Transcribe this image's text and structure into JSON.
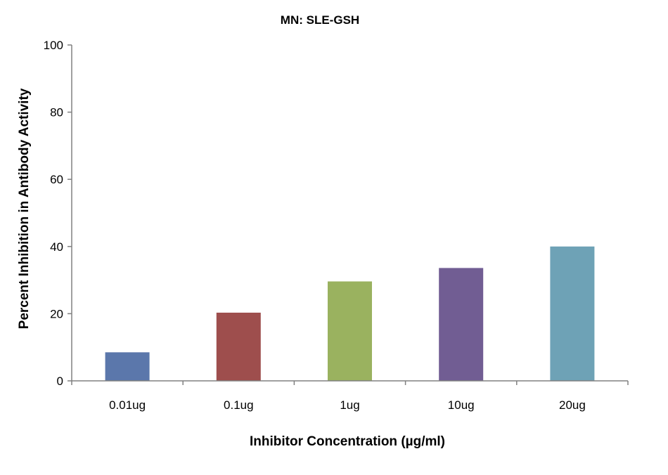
{
  "chart_data": {
    "type": "bar",
    "title": "MN: SLE-GSH",
    "xlabel": "Inhibitor Concentration (µg/ml)",
    "ylabel": "Percent Inhibition in Antibody Activity",
    "categories": [
      "0.01ug",
      "0.1ug",
      "1ug",
      "10ug",
      "20ug"
    ],
    "values": [
      8.5,
      20.3,
      29.6,
      33.6,
      40.0
    ],
    "colors": [
      "#5b77ab",
      "#9e4e4d",
      "#9ab25f",
      "#715d93",
      "#6ea2b6"
    ],
    "ylim": [
      0,
      100
    ],
    "yticks": [
      0,
      20,
      40,
      60,
      80,
      100
    ],
    "grid": false,
    "legend": "none"
  }
}
